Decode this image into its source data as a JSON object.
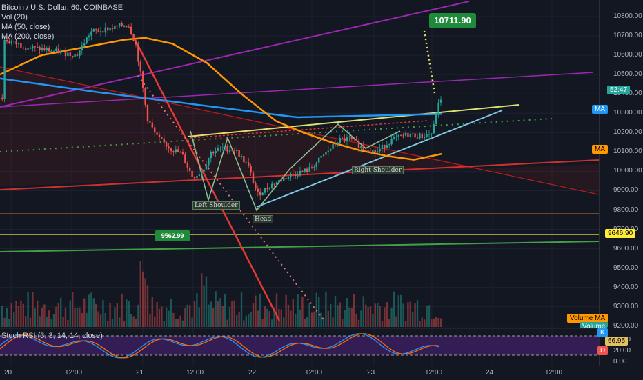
{
  "legend": {
    "symbol": "Bitcoin / U.S. Dollar, 60, COINBASE",
    "vol": "Vol (20)",
    "ma50": "MA (50, close)",
    "ma200": "MA (200, close)"
  },
  "rsi_legend": "Stoch RSI (3, 3, 14, 14, close)",
  "price_axis": {
    "ticks": [
      "10800.00",
      "10700.00",
      "10600.00",
      "10500.00",
      "10400.00",
      "10300.00",
      "10200.00",
      "10100.00",
      "10000.00",
      "9900.00",
      "9800.00",
      "9700.00",
      "9600.00",
      "9500.00",
      "9400.00",
      "9300.00",
      "9200.00"
    ],
    "rsi_ticks": [
      "80.00",
      "20.00",
      "0.00"
    ],
    "price_tag": "52:47",
    "ma_tag_blue": "MA",
    "ma_tag_orange": "MA",
    "level_tag": "9646.90",
    "volume_ma_tag": "Volume MA",
    "volume_tag": "Volume",
    "k_tag": "K",
    "rsi_value_tag": "66.95",
    "d_tag": "D"
  },
  "time_axis": [
    "20",
    "12:00",
    "21",
    "12:00",
    "22",
    "12:00",
    "23",
    "12:00",
    "24",
    "12:00"
  ],
  "annotations": {
    "left_shoulder": "Left Shoulder",
    "head": "Head",
    "right_shoulder": "Right Shoulder",
    "target_callout": "10711.90",
    "support_callout": "9562.99"
  },
  "colors": {
    "background": "#131722",
    "up": "#26a69a",
    "down": "#ef5350",
    "ma50": "#ff9800",
    "ma200": "#2196f3",
    "rsi_k": "#2196f3",
    "rsi_d": "#ff6d00"
  },
  "chart_data": {
    "type": "candlestick",
    "title": "Bitcoin / U.S. Dollar, 60, COINBASE",
    "price_range": [
      9150,
      10900
    ],
    "rsi_range": [
      0,
      100
    ],
    "key_levels": [
      9646.9,
      9562.99
    ],
    "target": 10711.9,
    "series": [
      {
        "name": "MA (50, close)",
        "color": "#ff9800"
      },
      {
        "name": "MA (200, close)",
        "color": "#2196f3"
      },
      {
        "name": "Vol (20)"
      },
      {
        "name": "Stoch RSI (3, 3, 14, 14, close)"
      }
    ]
  }
}
